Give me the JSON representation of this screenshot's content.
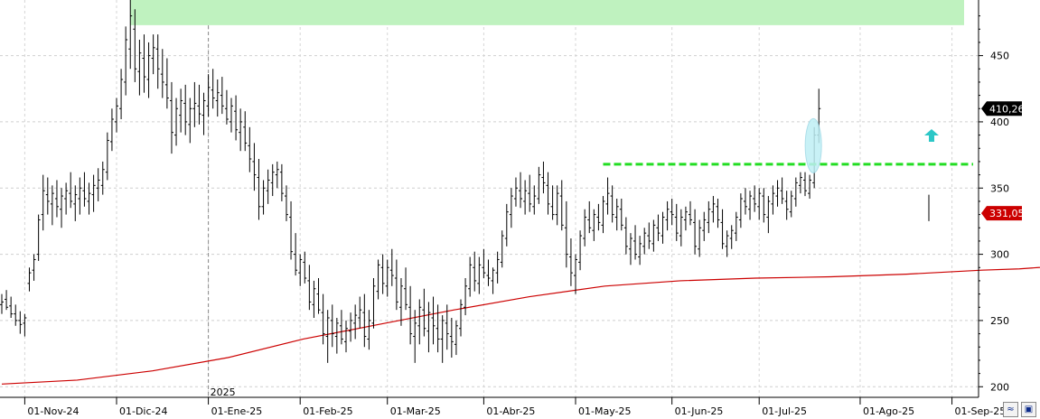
{
  "chart_data": {
    "type": "ohlc",
    "ylim": [
      192,
      492
    ],
    "y_ticks": [
      200,
      250,
      300,
      350,
      400,
      450
    ],
    "x_labels": [
      {
        "label": "01-Nov-24",
        "bar": 5
      },
      {
        "label": "01-Dic-24",
        "bar": 25
      },
      {
        "label": "01-Ene-25",
        "bar": 45
      },
      {
        "label": "01-Feb-25",
        "bar": 65
      },
      {
        "label": "01-Mar-25",
        "bar": 84
      },
      {
        "label": "01-Abr-25",
        "bar": 105
      },
      {
        "label": "01-May-25",
        "bar": 125
      },
      {
        "label": "01-Jun-25",
        "bar": 146
      },
      {
        "label": "01-Jul-25",
        "bar": 165
      },
      {
        "label": "01-Ago-25",
        "bar": 187
      },
      {
        "label": "01-Sep-25",
        "bar": 207
      }
    ],
    "year_marker": {
      "label": "2025",
      "bar": 45
    },
    "bars": [
      [
        262,
        270,
        255,
        264
      ],
      [
        266,
        273,
        258,
        260
      ],
      [
        261,
        268,
        252,
        255
      ],
      [
        255,
        262,
        246,
        250
      ],
      [
        250,
        257,
        240,
        247
      ],
      [
        248,
        255,
        238,
        252
      ],
      [
        278,
        290,
        272,
        286
      ],
      [
        288,
        300,
        280,
        296
      ],
      [
        300,
        330,
        295,
        326
      ],
      [
        330,
        360,
        318,
        348
      ],
      [
        345,
        358,
        330,
        340
      ],
      [
        338,
        352,
        322,
        346
      ],
      [
        342,
        356,
        328,
        336
      ],
      [
        334,
        350,
        320,
        344
      ],
      [
        342,
        354,
        330,
        348
      ],
      [
        346,
        362,
        335,
        340
      ],
      [
        338,
        352,
        325,
        345
      ],
      [
        342,
        358,
        330,
        350
      ],
      [
        348,
        362,
        336,
        342
      ],
      [
        340,
        354,
        330,
        346
      ],
      [
        345,
        360,
        332,
        352
      ],
      [
        350,
        365,
        340,
        356
      ],
      [
        352,
        370,
        345,
        364
      ],
      [
        362,
        392,
        356,
        386
      ],
      [
        385,
        410,
        378,
        402
      ],
      [
        400,
        418,
        392,
        412
      ],
      [
        410,
        440,
        402,
        432
      ],
      [
        430,
        472,
        420,
        462
      ],
      [
        455,
        492,
        440,
        480
      ],
      [
        470,
        485,
        430,
        440
      ],
      [
        438,
        462,
        420,
        452
      ],
      [
        448,
        466,
        422,
        434
      ],
      [
        432,
        460,
        418,
        450
      ],
      [
        448,
        466,
        436,
        456
      ],
      [
        455,
        466,
        425,
        440
      ],
      [
        436,
        455,
        418,
        430
      ],
      [
        428,
        448,
        410,
        418
      ],
      [
        416,
        430,
        376,
        392
      ],
      [
        390,
        418,
        382,
        410
      ],
      [
        405,
        425,
        392,
        416
      ],
      [
        414,
        428,
        390,
        400
      ],
      [
        398,
        418,
        384,
        410
      ],
      [
        410,
        430,
        396,
        414
      ],
      [
        412,
        428,
        398,
        406
      ],
      [
        405,
        422,
        390,
        416
      ],
      [
        412,
        436,
        404,
        426
      ],
      [
        424,
        440,
        410,
        418
      ],
      [
        416,
        432,
        404,
        422
      ],
      [
        420,
        434,
        406,
        412
      ],
      [
        410,
        424,
        398,
        402
      ],
      [
        400,
        418,
        392,
        412
      ],
      [
        408,
        420,
        386,
        394
      ],
      [
        392,
        410,
        378,
        400
      ],
      [
        396,
        408,
        378,
        384
      ],
      [
        382,
        396,
        362,
        372
      ],
      [
        370,
        384,
        348,
        360
      ],
      [
        358,
        372,
        326,
        336
      ],
      [
        336,
        356,
        330,
        350
      ],
      [
        348,
        364,
        338,
        356
      ],
      [
        354,
        368,
        344,
        362
      ],
      [
        360,
        370,
        350,
        364
      ],
      [
        362,
        368,
        340,
        346
      ],
      [
        344,
        352,
        325,
        330
      ],
      [
        328,
        340,
        296,
        302
      ],
      [
        300,
        316,
        284,
        288
      ],
      [
        286,
        300,
        276,
        296
      ],
      [
        294,
        302,
        278,
        282
      ],
      [
        280,
        292,
        258,
        264
      ],
      [
        262,
        280,
        252,
        274
      ],
      [
        270,
        282,
        255,
        258
      ],
      [
        256,
        270,
        232,
        240
      ],
      [
        238,
        258,
        218,
        252
      ],
      [
        250,
        262,
        230,
        240
      ],
      [
        238,
        252,
        225,
        248
      ],
      [
        246,
        258,
        232,
        236
      ],
      [
        234,
        250,
        226,
        244
      ],
      [
        242,
        256,
        234,
        250
      ],
      [
        248,
        262,
        236,
        254
      ],
      [
        252,
        268,
        244,
        258
      ],
      [
        256,
        270,
        230,
        238
      ],
      [
        236,
        258,
        228,
        250
      ],
      [
        248,
        282,
        244,
        276
      ],
      [
        272,
        296,
        266,
        292
      ],
      [
        290,
        300,
        270,
        278
      ],
      [
        276,
        296,
        268,
        290
      ],
      [
        288,
        304,
        276,
        284
      ],
      [
        282,
        296,
        258,
        264
      ],
      [
        260,
        282,
        246,
        276
      ],
      [
        274,
        290,
        258,
        262
      ],
      [
        260,
        276,
        232,
        240
      ],
      [
        238,
        258,
        218,
        248
      ],
      [
        246,
        266,
        232,
        260
      ],
      [
        258,
        274,
        238,
        244
      ],
      [
        242,
        264,
        226,
        256
      ],
      [
        252,
        268,
        232,
        246
      ],
      [
        244,
        262,
        226,
        236
      ],
      [
        236,
        254,
        218,
        250
      ],
      [
        248,
        262,
        228,
        240
      ],
      [
        238,
        252,
        222,
        234
      ],
      [
        232,
        250,
        224,
        246
      ],
      [
        244,
        266,
        238,
        262
      ],
      [
        260,
        282,
        254,
        276
      ],
      [
        274,
        298,
        268,
        292
      ],
      [
        290,
        302,
        272,
        280
      ],
      [
        278,
        298,
        270,
        292
      ],
      [
        290,
        304,
        282,
        286
      ],
      [
        284,
        296,
        276,
        282
      ],
      [
        280,
        290,
        270,
        288
      ],
      [
        286,
        302,
        278,
        296
      ],
      [
        294,
        318,
        290,
        314
      ],
      [
        312,
        338,
        306,
        332
      ],
      [
        330,
        350,
        320,
        344
      ],
      [
        342,
        358,
        336,
        350
      ],
      [
        348,
        362,
        335,
        342
      ],
      [
        340,
        356,
        330,
        348
      ],
      [
        346,
        360,
        332,
        338
      ],
      [
        336,
        352,
        330,
        344
      ],
      [
        342,
        366,
        338,
        360
      ],
      [
        358,
        370,
        346,
        354
      ],
      [
        352,
        362,
        330,
        338
      ],
      [
        336,
        352,
        326,
        330
      ],
      [
        330,
        352,
        322,
        346
      ],
      [
        344,
        356,
        318,
        322
      ],
      [
        320,
        340,
        290,
        300
      ],
      [
        298,
        312,
        276,
        286
      ],
      [
        284,
        300,
        270,
        296
      ],
      [
        294,
        318,
        288,
        314
      ],
      [
        312,
        334,
        306,
        328
      ],
      [
        326,
        340,
        316,
        320
      ],
      [
        318,
        334,
        310,
        330
      ],
      [
        328,
        338,
        318,
        324
      ],
      [
        322,
        344,
        316,
        340
      ],
      [
        338,
        358,
        330,
        346
      ],
      [
        344,
        352,
        324,
        330
      ],
      [
        328,
        342,
        318,
        336
      ],
      [
        334,
        342,
        318,
        322
      ],
      [
        320,
        328,
        300,
        306
      ],
      [
        304,
        316,
        292,
        312
      ],
      [
        310,
        322,
        296,
        300
      ],
      [
        298,
        314,
        292,
        308
      ],
      [
        306,
        320,
        300,
        316
      ],
      [
        314,
        324,
        304,
        310
      ],
      [
        308,
        326,
        302,
        322
      ],
      [
        320,
        330,
        310,
        316
      ],
      [
        314,
        332,
        308,
        328
      ],
      [
        326,
        340,
        318,
        334
      ],
      [
        332,
        342,
        322,
        330
      ],
      [
        328,
        338,
        310,
        316
      ],
      [
        314,
        334,
        306,
        328
      ],
      [
        326,
        336,
        318,
        332
      ],
      [
        330,
        340,
        322,
        326
      ],
      [
        324,
        334,
        300,
        306
      ],
      [
        304,
        326,
        298,
        320
      ],
      [
        318,
        332,
        310,
        326
      ],
      [
        324,
        340,
        316,
        334
      ],
      [
        332,
        344,
        324,
        338
      ],
      [
        336,
        342,
        320,
        326
      ],
      [
        324,
        334,
        304,
        308
      ],
      [
        306,
        318,
        298,
        314
      ],
      [
        312,
        322,
        304,
        318
      ],
      [
        316,
        332,
        310,
        328
      ],
      [
        326,
        346,
        320,
        342
      ],
      [
        340,
        350,
        330,
        336
      ],
      [
        334,
        348,
        326,
        344
      ],
      [
        342,
        352,
        332,
        338
      ],
      [
        336,
        350,
        326,
        346
      ],
      [
        344,
        350,
        324,
        330
      ],
      [
        328,
        344,
        316,
        340
      ],
      [
        338,
        352,
        330,
        346
      ],
      [
        344,
        356,
        336,
        350
      ],
      [
        348,
        358,
        338,
        342
      ],
      [
        340,
        348,
        326,
        334
      ],
      [
        332,
        348,
        328,
        344
      ],
      [
        342,
        358,
        336,
        354
      ],
      [
        352,
        362,
        346,
        358
      ],
      [
        356,
        362,
        344,
        348
      ],
      [
        346,
        360,
        342,
        356
      ],
      [
        354,
        396,
        350,
        390
      ],
      [
        390,
        425,
        384,
        410
      ]
    ],
    "ma": {
      "color": "#cc0000",
      "points": [
        [
          0,
          202
        ],
        [
          20,
          205
        ],
        [
          40,
          212
        ],
        [
          60,
          222
        ],
        [
          80,
          236
        ],
        [
          100,
          247
        ],
        [
          120,
          258
        ],
        [
          140,
          268
        ],
        [
          160,
          276
        ],
        [
          180,
          280
        ],
        [
          200,
          282
        ],
        [
          220,
          283
        ],
        [
          240,
          285
        ],
        [
          260,
          288
        ],
        [
          270,
          289
        ],
        [
          285,
          292
        ],
        [
          300,
          296
        ],
        [
          320,
          304
        ],
        [
          340,
          312
        ],
        [
          360,
          318
        ],
        [
          380,
          322
        ],
        [
          400,
          326
        ],
        [
          420,
          328
        ],
        [
          437,
          331
        ]
      ]
    },
    "resistance": {
      "value": 368,
      "from_bar": 131,
      "color": "#22dd22"
    },
    "zone": {
      "low": 473,
      "high": 492,
      "from_bar": 28,
      "color": "#bff2bf"
    },
    "annotations": {
      "arrow_color": "#2cc7c7",
      "ellipse_color": "#bfeff5"
    },
    "price_badges": [
      {
        "label": "410,26",
        "value": 410,
        "bg": "#000000"
      },
      {
        "label": "331,05",
        "value": 331,
        "bg": "#cc0000"
      }
    ]
  },
  "toolbar": {
    "scale_icon": "scale-icon",
    "save_icon": "save-icon"
  }
}
